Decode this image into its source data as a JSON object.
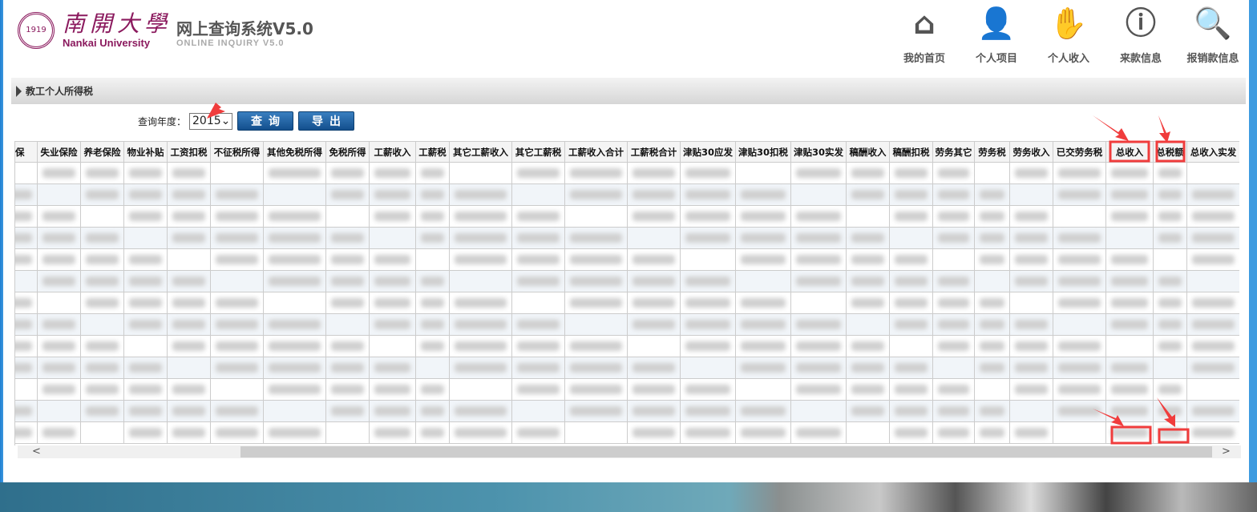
{
  "logo": {
    "seal_text": "1919",
    "chinese": "南開大學",
    "english": "Nankai University"
  },
  "header": {
    "title": "网上查询系统V5.0",
    "subtitle": "ONLINE INQUIRY V5.0"
  },
  "nav": [
    {
      "label": "我的首页",
      "icon": "home-icon",
      "glyph": "⌂"
    },
    {
      "label": "个人项目",
      "icon": "user-laptop-icon",
      "glyph": "👤"
    },
    {
      "label": "个人收入",
      "icon": "hand-coin-icon",
      "glyph": "✋"
    },
    {
      "label": "来款信息",
      "icon": "money-info-icon",
      "glyph": "ⓘ"
    },
    {
      "label": "报销款信息",
      "icon": "coins-search-icon",
      "glyph": "🔍"
    }
  ],
  "section": {
    "title": "教工个人所得税"
  },
  "query": {
    "label": "查询年度：",
    "year": "2015",
    "query_button": "查询",
    "export_button": "导出"
  },
  "table": {
    "columns": [
      "医保",
      "失业保险",
      "养老保险",
      "物业补贴",
      "工资扣税",
      "不征税所得",
      "其他免税所得",
      "免税所得",
      "工薪收入",
      "工薪税",
      "其它工薪收入",
      "其它工薪税",
      "工薪收入合计",
      "工薪税合计",
      "津贴30应发",
      "津贴30扣税",
      "津贴30实发",
      "稿酬收入",
      "稿酬扣税",
      "劳务其它",
      "劳务税",
      "劳务收入",
      "已交劳务税",
      "总收入",
      "总税额",
      "总收入实发"
    ],
    "row_count": 13,
    "highlighted_columns": [
      "总收入",
      "总税额"
    ]
  },
  "colors": {
    "accent": "#134f8d",
    "brand": "#8b1a5e",
    "annotation": "#f03c3c"
  }
}
